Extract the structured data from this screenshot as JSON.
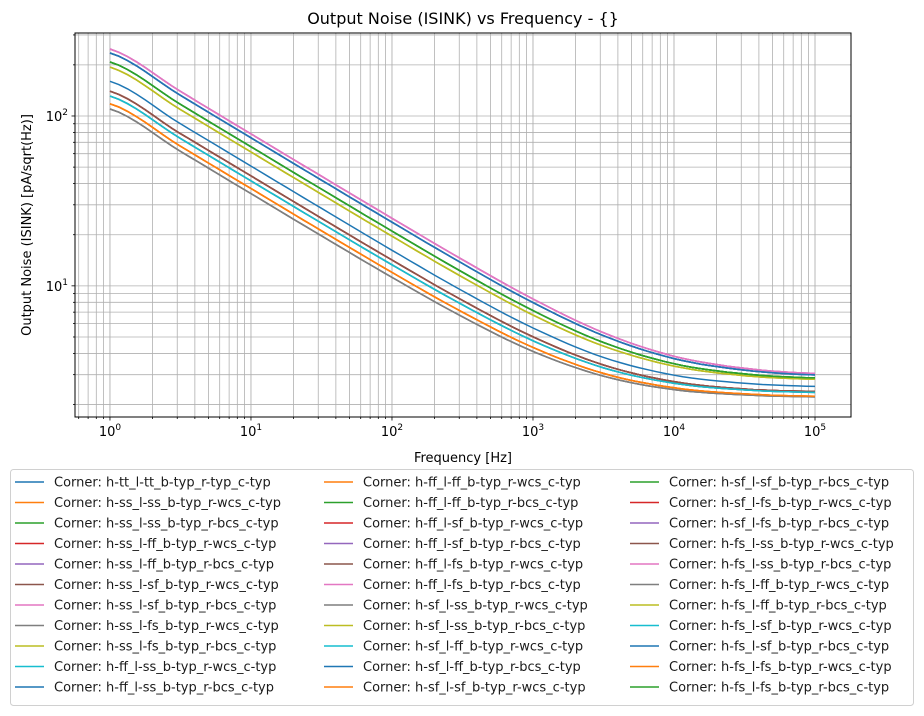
{
  "chart_data": {
    "type": "line",
    "title": "Output Noise (ISINK) vs Frequency - {}",
    "xlabel": "Frequency [Hz]",
    "ylabel": "Output Noise (ISINK) [pA/sqrt(Hz)]",
    "xscale": "log",
    "yscale": "log",
    "xlim": [
      0.565,
      180000
    ],
    "ylim": [
      1.69,
      308
    ],
    "grid": "major and minor",
    "legend_placement": "below plot, 3 columns",
    "x_ticks": [
      {
        "v": 1,
        "base": "10",
        "exp": "0"
      },
      {
        "v": 10,
        "base": "10",
        "exp": "1"
      },
      {
        "v": 100,
        "base": "10",
        "exp": "2"
      },
      {
        "v": 1000,
        "base": "10",
        "exp": "3"
      },
      {
        "v": 10000,
        "base": "10",
        "exp": "4"
      },
      {
        "v": 100000,
        "base": "10",
        "exp": "5"
      }
    ],
    "y_ticks": [
      {
        "v": 10,
        "base": "10",
        "exp": "1"
      },
      {
        "v": 100,
        "base": "10",
        "exp": "2"
      }
    ],
    "x": [
      1,
      3.162,
      10,
      31.62,
      100,
      316.2,
      1000,
      3162,
      10000,
      31623,
      100000
    ],
    "series": [
      {
        "name": "Corner: h-tt_l-tt_b-typ_r-typ_c-typ",
        "color": "#1f77b4",
        "values": [
          160,
          90.0,
          50.7,
          28.6,
          16.2,
          9.34,
          5.65,
          3.79,
          2.98,
          2.67,
          2.56
        ]
      },
      {
        "name": "Corner: h-ss_l-ss_b-typ_r-wcs_c-typ",
        "color": "#ff7f0e",
        "values": [
          118,
          66.4,
          37.4,
          21.1,
          12.0,
          7.0,
          4.34,
          3.05,
          2.51,
          2.31,
          2.24
        ]
      },
      {
        "name": "Corner: h-ss_l-ss_b-typ_r-bcs_c-typ",
        "color": "#2ca02c",
        "values": [
          208,
          117.0,
          65.9,
          37.1,
          21.0,
          12.03,
          7.15,
          4.64,
          3.48,
          3.03,
          2.87
        ]
      },
      {
        "name": "Corner: h-ss_l-ff_b-typ_r-wcs_c-typ",
        "color": "#d62728",
        "values": [
          140,
          78.7,
          44.4,
          25.0,
          14.19,
          8.21,
          5.01,
          3.42,
          2.73,
          2.47,
          2.39
        ]
      },
      {
        "name": "Corner: h-ss_l-ff_b-typ_r-bcs_c-typ",
        "color": "#9467bd",
        "values": [
          235,
          132.2,
          74.4,
          41.9,
          23.7,
          13.53,
          7.97,
          5.09,
          3.73,
          3.19,
          2.99
        ]
      },
      {
        "name": "Corner: h-ss_l-sf_b-typ_r-wcs_c-typ",
        "color": "#8c564b",
        "values": [
          140,
          78.7,
          44.4,
          25.0,
          14.19,
          8.21,
          5.01,
          3.42,
          2.73,
          2.47,
          2.39
        ]
      },
      {
        "name": "Corner: h-ss_l-sf_b-typ_r-bcs_c-typ",
        "color": "#e377c2",
        "values": [
          248,
          139.5,
          78.4,
          44.2,
          25.0,
          14.26,
          8.37,
          5.3,
          3.85,
          3.27,
          3.05
        ]
      },
      {
        "name": "Corner: h-ss_l-fs_b-typ_r-wcs_c-typ",
        "color": "#7f7f7f",
        "values": [
          110,
          61.9,
          34.9,
          19.7,
          11.22,
          6.57,
          4.11,
          2.94,
          2.45,
          2.28,
          2.22
        ]
      },
      {
        "name": "Corner: h-ss_l-fs_b-typ_r-bcs_c-typ",
        "color": "#bcbd22",
        "values": [
          194,
          109.1,
          61.4,
          34.6,
          19.6,
          11.25,
          6.73,
          4.42,
          3.37,
          2.96,
          2.82
        ]
      },
      {
        "name": "Corner: h-ff_l-ss_b-typ_r-wcs_c-typ",
        "color": "#17becf",
        "values": [
          131,
          73.7,
          41.5,
          23.4,
          13.3,
          7.73,
          4.75,
          3.29,
          2.67,
          2.44,
          2.36
        ]
      },
      {
        "name": "Corner: h-ff_l-ss_b-typ_r-bcs_c-typ",
        "color": "#1f77b4",
        "values": [
          235,
          132.2,
          74.4,
          41.9,
          23.7,
          13.53,
          7.97,
          5.09,
          3.73,
          3.19,
          2.99
        ]
      },
      {
        "name": "Corner: h-ff_l-ff_b-typ_r-wcs_c-typ",
        "color": "#ff7f0e",
        "values": [
          118,
          66.4,
          37.4,
          21.1,
          12.0,
          7.0,
          4.34,
          3.05,
          2.51,
          2.31,
          2.24
        ]
      },
      {
        "name": "Corner: h-ff_l-ff_b-typ_r-bcs_c-typ",
        "color": "#2ca02c",
        "values": [
          208,
          117.0,
          65.9,
          37.1,
          21.0,
          12.03,
          7.15,
          4.64,
          3.48,
          3.03,
          2.87
        ]
      },
      {
        "name": "Corner: h-ff_l-sf_b-typ_r-wcs_c-typ",
        "color": "#d62728",
        "values": [
          131,
          73.7,
          41.5,
          23.4,
          13.3,
          7.73,
          4.75,
          3.29,
          2.67,
          2.44,
          2.36
        ]
      },
      {
        "name": "Corner: h-ff_l-sf_b-typ_r-bcs_c-typ",
        "color": "#9467bd",
        "values": [
          248,
          139.5,
          78.4,
          44.2,
          25.0,
          14.26,
          8.37,
          5.3,
          3.85,
          3.27,
          3.05
        ]
      },
      {
        "name": "Corner: h-ff_l-fs_b-typ_r-wcs_c-typ",
        "color": "#8c564b",
        "values": [
          140,
          78.7,
          44.4,
          25.0,
          14.19,
          8.21,
          5.01,
          3.42,
          2.73,
          2.47,
          2.39
        ]
      },
      {
        "name": "Corner: h-ff_l-fs_b-typ_r-bcs_c-typ",
        "color": "#e377c2",
        "values": [
          248,
          139.5,
          78.4,
          44.2,
          25.0,
          14.26,
          8.37,
          5.3,
          3.85,
          3.27,
          3.05
        ]
      },
      {
        "name": "Corner: h-sf_l-ss_b-typ_r-wcs_c-typ",
        "color": "#7f7f7f",
        "values": [
          110,
          61.9,
          34.9,
          19.7,
          11.22,
          6.57,
          4.11,
          2.94,
          2.45,
          2.28,
          2.22
        ]
      },
      {
        "name": "Corner: h-sf_l-ss_b-typ_r-bcs_c-typ",
        "color": "#bcbd22",
        "values": [
          194,
          109.1,
          61.4,
          34.6,
          19.6,
          11.25,
          6.73,
          4.42,
          3.37,
          2.96,
          2.82
        ]
      },
      {
        "name": "Corner: h-sf_l-ff_b-typ_r-wcs_c-typ",
        "color": "#17becf",
        "values": [
          131,
          73.7,
          41.5,
          23.4,
          13.3,
          7.73,
          4.75,
          3.29,
          2.67,
          2.44,
          2.36
        ]
      },
      {
        "name": "Corner: h-sf_l-ff_b-typ_r-bcs_c-typ",
        "color": "#1f77b4",
        "values": [
          235,
          132.2,
          74.4,
          41.9,
          23.7,
          13.53,
          7.97,
          5.09,
          3.73,
          3.19,
          2.99
        ]
      },
      {
        "name": "Corner: h-sf_l-sf_b-typ_r-wcs_c-typ",
        "color": "#ff7f0e",
        "values": [
          118,
          66.4,
          37.4,
          21.1,
          12.0,
          7.0,
          4.34,
          3.05,
          2.51,
          2.31,
          2.24
        ]
      },
      {
        "name": "Corner: h-sf_l-sf_b-typ_r-bcs_c-typ",
        "color": "#2ca02c",
        "values": [
          208,
          117.0,
          65.9,
          37.1,
          21.0,
          12.03,
          7.15,
          4.64,
          3.48,
          3.03,
          2.87
        ]
      },
      {
        "name": "Corner: h-sf_l-fs_b-typ_r-wcs_c-typ",
        "color": "#d62728",
        "values": [
          140,
          78.7,
          44.4,
          25.0,
          14.19,
          8.21,
          5.01,
          3.42,
          2.73,
          2.47,
          2.39
        ]
      },
      {
        "name": "Corner: h-sf_l-fs_b-typ_r-bcs_c-typ",
        "color": "#9467bd",
        "values": [
          235,
          132.2,
          74.4,
          41.9,
          23.7,
          13.53,
          7.97,
          5.09,
          3.73,
          3.19,
          2.99
        ]
      },
      {
        "name": "Corner: h-fs_l-ss_b-typ_r-wcs_c-typ",
        "color": "#8c564b",
        "values": [
          140,
          78.7,
          44.4,
          25.0,
          14.19,
          8.21,
          5.01,
          3.42,
          2.73,
          2.47,
          2.39
        ]
      },
      {
        "name": "Corner: h-fs_l-ss_b-typ_r-bcs_c-typ",
        "color": "#e377c2",
        "values": [
          248,
          139.5,
          78.4,
          44.2,
          25.0,
          14.26,
          8.37,
          5.3,
          3.85,
          3.27,
          3.05
        ]
      },
      {
        "name": "Corner: h-fs_l-ff_b-typ_r-wcs_c-typ",
        "color": "#7f7f7f",
        "values": [
          110,
          61.9,
          34.9,
          19.7,
          11.22,
          6.57,
          4.11,
          2.94,
          2.45,
          2.28,
          2.22
        ]
      },
      {
        "name": "Corner: h-fs_l-ff_b-typ_r-bcs_c-typ",
        "color": "#bcbd22",
        "values": [
          194,
          109.1,
          61.4,
          34.6,
          19.6,
          11.25,
          6.73,
          4.42,
          3.37,
          2.96,
          2.82
        ]
      },
      {
        "name": "Corner: h-fs_l-sf_b-typ_r-wcs_c-typ",
        "color": "#17becf",
        "values": [
          131,
          73.7,
          41.5,
          23.4,
          13.3,
          7.73,
          4.75,
          3.29,
          2.67,
          2.44,
          2.36
        ]
      },
      {
        "name": "Corner: h-fs_l-sf_b-typ_r-bcs_c-typ",
        "color": "#1f77b4",
        "values": [
          235,
          132.2,
          74.4,
          41.9,
          23.7,
          13.53,
          7.97,
          5.09,
          3.73,
          3.19,
          2.99
        ]
      },
      {
        "name": "Corner: h-fs_l-fs_b-typ_r-wcs_c-typ",
        "color": "#ff7f0e",
        "values": [
          118,
          66.4,
          37.4,
          21.1,
          12.0,
          7.0,
          4.34,
          3.05,
          2.51,
          2.31,
          2.24
        ]
      },
      {
        "name": "Corner: h-fs_l-fs_b-typ_r-bcs_c-typ",
        "color": "#2ca02c",
        "values": [
          208,
          117.0,
          65.9,
          37.1,
          21.0,
          12.03,
          7.15,
          4.64,
          3.48,
          3.03,
          2.87
        ]
      }
    ]
  }
}
